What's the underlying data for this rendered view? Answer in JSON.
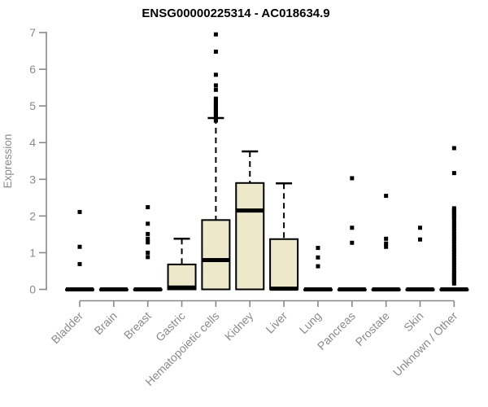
{
  "colors": {
    "background": "#ffffff",
    "box_fill": "#ede8c9",
    "box_border": "#000000",
    "median": "#000000",
    "whisker": "#000000",
    "outlier": "#000000",
    "axis": "#888888",
    "tick_text": "#8a8a8a",
    "title_text": "#000000"
  },
  "chart_data": {
    "type": "boxplot",
    "title": "ENSG00000225314 - AC018634.9",
    "xlabel": "",
    "ylabel": "Expression",
    "ylim": [
      0,
      7
    ],
    "yticks": [
      0,
      1,
      2,
      3,
      4,
      5,
      6,
      7
    ],
    "grid": false,
    "legend": "none",
    "categories": [
      "Bladder",
      "Brain",
      "Breast",
      "Gastric",
      "Hematopoietic cells",
      "Kidney",
      "Liver",
      "Lung",
      "Pancreas",
      "Prostate",
      "Skin",
      "Unknown / Other"
    ],
    "series": [
      {
        "label": "Bladder",
        "q1": 0,
        "median": 0,
        "q3": 0,
        "whisker_low": 0,
        "whisker_high": 0,
        "outliers": [
          2.11,
          1.16,
          0.69
        ]
      },
      {
        "label": "Brain",
        "q1": 0,
        "median": 0,
        "q3": 0,
        "whisker_low": 0,
        "whisker_high": 0,
        "outliers": []
      },
      {
        "label": "Breast",
        "q1": 0,
        "median": 0,
        "q3": 0,
        "whisker_low": 0,
        "whisker_high": 0,
        "outliers": [
          2.24,
          1.79,
          1.51,
          1.38,
          1.28,
          1.0,
          0.88
        ]
      },
      {
        "label": "Gastric",
        "q1": 0,
        "median": 0.05,
        "q3": 0.68,
        "whisker_low": 0,
        "whisker_high": 1.38,
        "outliers": []
      },
      {
        "label": "Hematopoietic cells",
        "q1": 0,
        "median": 0.8,
        "q3": 1.89,
        "whisker_low": 0,
        "whisker_high": 4.67,
        "outliers": [
          6.95,
          6.48,
          5.85,
          5.56,
          5.44,
          5.2,
          5.15,
          5.1,
          5.05,
          5.0,
          4.95,
          4.9,
          4.85,
          4.8,
          4.75,
          4.7,
          4.65,
          4.6
        ]
      },
      {
        "label": "Kidney",
        "q1": 0,
        "median": 2.15,
        "q3": 2.9,
        "whisker_low": 0,
        "whisker_high": 3.76,
        "outliers": []
      },
      {
        "label": "Liver",
        "q1": 0,
        "median": 0.02,
        "q3": 1.37,
        "whisker_low": 0,
        "whisker_high": 2.89,
        "outliers": []
      },
      {
        "label": "Lung",
        "q1": 0,
        "median": 0,
        "q3": 0,
        "whisker_low": 0,
        "whisker_high": 0,
        "outliers": [
          1.13,
          0.87,
          0.63
        ]
      },
      {
        "label": "Pancreas",
        "q1": 0,
        "median": 0,
        "q3": 0,
        "whisker_low": 0,
        "whisker_high": 0,
        "outliers": [
          3.03,
          1.68,
          1.27
        ]
      },
      {
        "label": "Prostate",
        "q1": 0,
        "median": 0,
        "q3": 0,
        "whisker_low": 0,
        "whisker_high": 0,
        "outliers": [
          2.55,
          1.38,
          1.25,
          1.16
        ]
      },
      {
        "label": "Skin",
        "q1": 0,
        "median": 0,
        "q3": 0,
        "whisker_low": 0,
        "whisker_high": 0,
        "outliers": [
          1.68,
          1.36
        ]
      },
      {
        "label": "Unknown / Other",
        "q1": 0,
        "median": 0,
        "q3": 0,
        "whisker_low": 0,
        "whisker_high": 0,
        "outliers": [
          3.85,
          3.17,
          2.21,
          2.17,
          2.13,
          2.09,
          2.05,
          2.01,
          1.97,
          1.93,
          1.86,
          1.79,
          1.72,
          1.65,
          1.58,
          1.51,
          1.44,
          1.37,
          1.3,
          1.23,
          1.16,
          1.09,
          1.02,
          0.95,
          0.88,
          0.81,
          0.74,
          0.67,
          0.6,
          0.53,
          0.46,
          0.41,
          0.36,
          0.31,
          0.26,
          0.21,
          0.16
        ]
      }
    ]
  }
}
